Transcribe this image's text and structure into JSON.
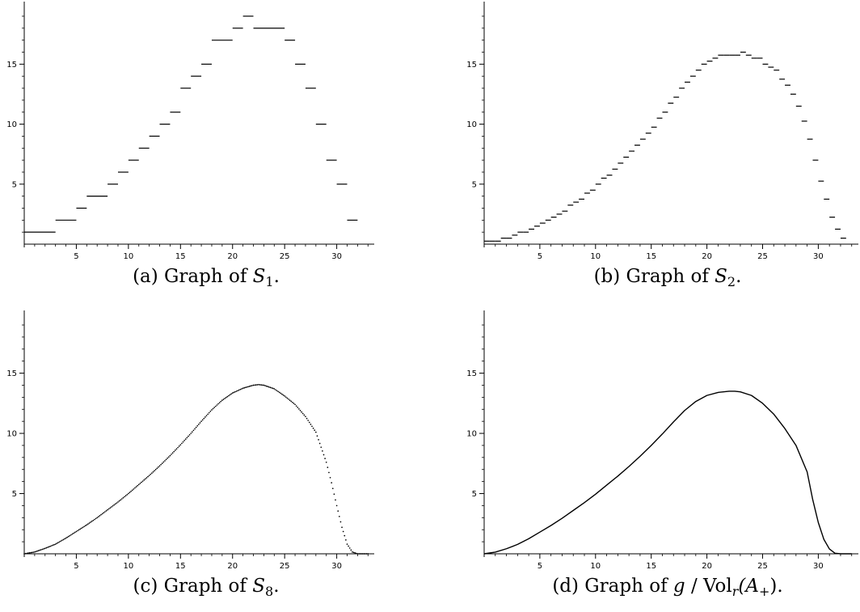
{
  "chart_data": [
    {
      "id": "a",
      "type": "step",
      "caption": {
        "prefix": "(a) Graph of ",
        "math": "S",
        "sub": "1",
        "suffix": "."
      },
      "xlim": [
        0,
        32
      ],
      "ylim": [
        0,
        19
      ],
      "xticks": [
        5,
        10,
        15,
        20,
        25,
        30
      ],
      "yticks": [
        5,
        10,
        15
      ],
      "bin_width": 1,
      "segments": [
        {
          "x0": 0,
          "x1": 3,
          "y": 1
        },
        {
          "x0": 3,
          "x1": 5,
          "y": 2
        },
        {
          "x0": 5,
          "x1": 6,
          "y": 3
        },
        {
          "x0": 6,
          "x1": 8,
          "y": 4
        },
        {
          "x0": 8,
          "x1": 9,
          "y": 5
        },
        {
          "x0": 9,
          "x1": 10,
          "y": 6
        },
        {
          "x0": 10,
          "x1": 11,
          "y": 7
        },
        {
          "x0": 11,
          "x1": 12,
          "y": 8
        },
        {
          "x0": 12,
          "x1": 13,
          "y": 9
        },
        {
          "x0": 13,
          "x1": 14,
          "y": 10
        },
        {
          "x0": 14,
          "x1": 15,
          "y": 11
        },
        {
          "x0": 15,
          "x1": 16,
          "y": 13
        },
        {
          "x0": 16,
          "x1": 17,
          "y": 14
        },
        {
          "x0": 17,
          "x1": 18,
          "y": 15
        },
        {
          "x0": 18,
          "x1": 20,
          "y": 17
        },
        {
          "x0": 20,
          "x1": 21,
          "y": 18
        },
        {
          "x0": 21,
          "x1": 22,
          "y": 19
        },
        {
          "x0": 22,
          "x1": 25,
          "y": 18
        },
        {
          "x0": 25,
          "x1": 26,
          "y": 17
        },
        {
          "x0": 26,
          "x1": 27,
          "y": 15
        },
        {
          "x0": 27,
          "x1": 28,
          "y": 13
        },
        {
          "x0": 28,
          "x1": 29,
          "y": 10
        },
        {
          "x0": 29,
          "x1": 30,
          "y": 7
        },
        {
          "x0": 30,
          "x1": 31,
          "y": 5
        },
        {
          "x0": 31,
          "x1": 32,
          "y": 2
        }
      ]
    },
    {
      "id": "b",
      "type": "step",
      "caption": {
        "prefix": "(b) Graph of ",
        "math": "S",
        "sub": "2",
        "suffix": "."
      },
      "xlim": [
        0,
        32
      ],
      "ylim": [
        0,
        19
      ],
      "xticks": [
        5,
        10,
        15,
        20,
        25,
        30
      ],
      "yticks": [
        5,
        10,
        15
      ],
      "bin_width": 0.5,
      "values": [
        0.25,
        0.25,
        0.25,
        0.5,
        0.5,
        0.75,
        1,
        1,
        1.25,
        1.5,
        1.75,
        2,
        2.25,
        2.5,
        2.75,
        3.25,
        3.5,
        3.75,
        4.25,
        4.5,
        5,
        5.5,
        5.75,
        6.25,
        6.75,
        7.25,
        7.75,
        8.25,
        8.75,
        9.25,
        9.75,
        10.5,
        11,
        11.75,
        12.25,
        13,
        13.5,
        14,
        14.5,
        15,
        15.25,
        15.5,
        15.75,
        15.75,
        15.75,
        15.75,
        16,
        15.75,
        15.5,
        15.5,
        15,
        14.75,
        14.5,
        13.75,
        13.25,
        12.5,
        11.5,
        10.25,
        8.75,
        7,
        5.25,
        3.75,
        2.25,
        1.25,
        0.5
      ]
    },
    {
      "id": "c",
      "type": "scatter",
      "caption": {
        "prefix": "(c) Graph of ",
        "math": "S",
        "sub": "8",
        "suffix": "."
      },
      "xlim": [
        0,
        32
      ],
      "ylim": [
        0,
        19
      ],
      "xticks": [
        5,
        10,
        15,
        20,
        25,
        30
      ],
      "yticks": [
        5,
        10,
        15
      ],
      "x": [
        0,
        1,
        2,
        3,
        4,
        5,
        6,
        7,
        8,
        9,
        10,
        11,
        12,
        13,
        14,
        15,
        16,
        17,
        18,
        19,
        20,
        21,
        22,
        22.5,
        23,
        24,
        25,
        26,
        27,
        28,
        29,
        29.5,
        30,
        30.5,
        31,
        31.5,
        32
      ],
      "y": [
        0,
        0.15,
        0.45,
        0.8,
        1.3,
        1.85,
        2.4,
        3.0,
        3.65,
        4.3,
        5.0,
        5.75,
        6.5,
        7.3,
        8.15,
        9.05,
        10.0,
        11.0,
        11.95,
        12.75,
        13.35,
        13.75,
        14.0,
        14.05,
        14.0,
        13.7,
        13.1,
        12.4,
        11.4,
        10.1,
        7.6,
        5.9,
        4.0,
        2.2,
        0.8,
        0.15,
        0
      ],
      "step": 0.125
    },
    {
      "id": "d",
      "type": "line",
      "caption": {
        "prefix": "(d) Graph of ",
        "math": "g",
        "mid": " / Vol",
        "sub": "r",
        "suffix": "(A",
        "sub2": "+",
        "end": ")."
      },
      "xlim": [
        0,
        32
      ],
      "ylim": [
        0,
        19
      ],
      "xticks": [
        5,
        10,
        15,
        20,
        25,
        30
      ],
      "yticks": [
        5,
        10,
        15
      ],
      "x": [
        0,
        1,
        2,
        3,
        4,
        5,
        6,
        7,
        8,
        9,
        10,
        11,
        12,
        13,
        14,
        15,
        16,
        17,
        18,
        19,
        20,
        21,
        22,
        22.5,
        23,
        24,
        25,
        26,
        27,
        28,
        29,
        29.5,
        30,
        30.5,
        31,
        31.5,
        32
      ],
      "y": [
        0,
        0.14,
        0.42,
        0.78,
        1.25,
        1.8,
        2.35,
        2.95,
        3.6,
        4.25,
        4.95,
        5.7,
        6.45,
        7.25,
        8.1,
        9.0,
        9.95,
        10.95,
        11.9,
        12.65,
        13.15,
        13.4,
        13.5,
        13.5,
        13.45,
        13.15,
        12.5,
        11.6,
        10.4,
        9.0,
        6.8,
        4.5,
        2.6,
        1.2,
        0.4,
        0.05,
        0
      ]
    }
  ]
}
